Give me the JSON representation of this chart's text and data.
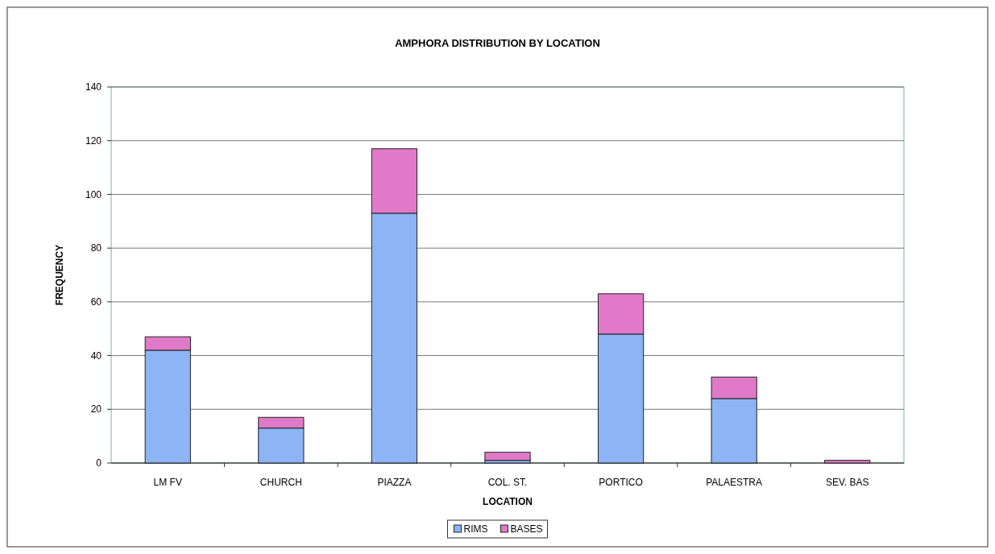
{
  "chart_data": {
    "type": "bar",
    "title": "AMPHORA DISTRIBUTION BY LOCATION",
    "xlabel": "LOCATION",
    "ylabel": "FREQUENCY",
    "categories": [
      "LM FV",
      "CHURCH",
      "PIAZZA",
      "COL. ST.",
      "PORTICO",
      "PALAESTRA",
      "SEV. BAS"
    ],
    "stacked": true,
    "series": [
      {
        "name": "RIMS",
        "color": "#8db4f5",
        "values": [
          42,
          13,
          93,
          1,
          48,
          24,
          0
        ]
      },
      {
        "name": "BASES",
        "color": "#e07ac8",
        "values": [
          5,
          4,
          24,
          3,
          15,
          8,
          1
        ]
      }
    ],
    "ylim": [
      0,
      140
    ],
    "yticks": [
      0,
      20,
      40,
      60,
      80,
      100,
      120,
      140
    ],
    "grid": "y",
    "legend": "bottom"
  }
}
